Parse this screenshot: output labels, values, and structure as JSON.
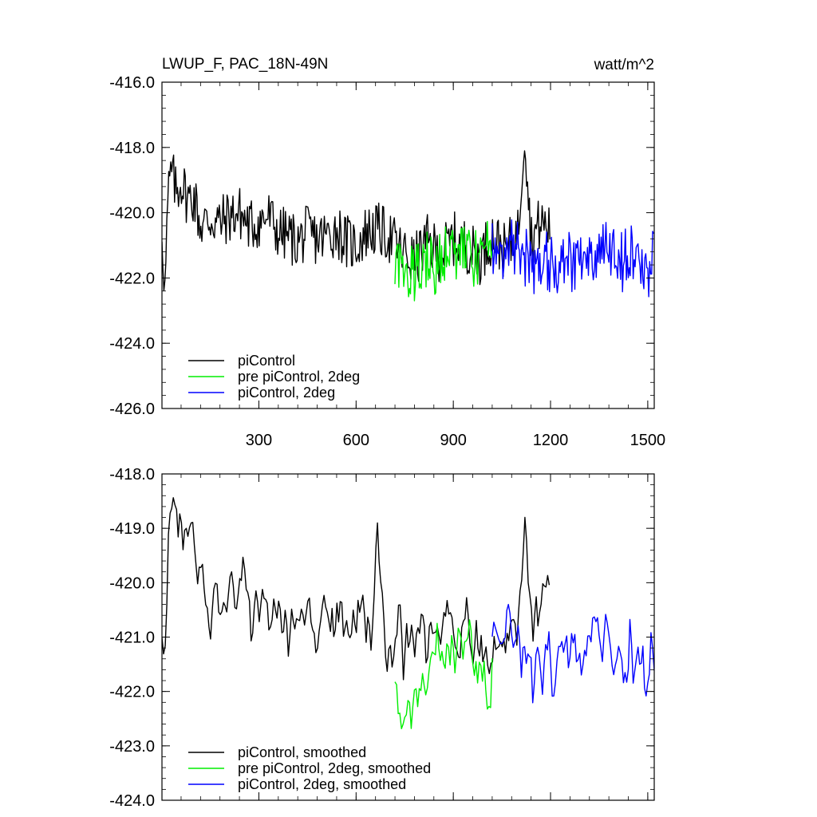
{
  "chart_data": [
    {
      "type": "line",
      "title": "LWUP_F, PAC_18N-49N",
      "units": "watt/m^2",
      "xlim": [
        1,
        1520
      ],
      "ylim": [
        -426.0,
        -416.0
      ],
      "xticks": [
        300,
        600,
        900,
        1200,
        1500
      ],
      "xtick_labels": [
        "300",
        "600",
        "900",
        "1200",
        "1500"
      ],
      "yticks": [
        -426.0,
        -424.0,
        -422.0,
        -420.0,
        -418.0,
        -416.0
      ],
      "ytick_labels": [
        "-426.0",
        "-424.0",
        "-422.0",
        "-420.0",
        "-418.0",
        "-416.0"
      ],
      "legend_position": "bottom-left",
      "series": [
        {
          "name": "piControl",
          "color": "#000000",
          "x_range": [
            1,
            1200
          ],
          "points": [
            [
              1,
              -420.5
            ],
            [
              10,
              -422.4
            ],
            [
              20,
              -419.5
            ],
            [
              30,
              -418.7
            ],
            [
              45,
              -419.4
            ],
            [
              60,
              -419.0
            ],
            [
              80,
              -419.6
            ],
            [
              100,
              -419.5
            ],
            [
              120,
              -420.4
            ],
            [
              150,
              -420.2
            ],
            [
              180,
              -420.3
            ],
            [
              210,
              -420.1
            ],
            [
              240,
              -420.0
            ],
            [
              270,
              -420.4
            ],
            [
              300,
              -420.3
            ],
            [
              330,
              -420.1
            ],
            [
              360,
              -420.6
            ],
            [
              390,
              -420.7
            ],
            [
              420,
              -420.9
            ],
            [
              450,
              -420.6
            ],
            [
              480,
              -420.8
            ],
            [
              510,
              -420.7
            ],
            [
              540,
              -420.5
            ],
            [
              570,
              -420.9
            ],
            [
              600,
              -421.0
            ],
            [
              630,
              -420.6
            ],
            [
              660,
              -420.5
            ],
            [
              700,
              -420.7
            ],
            [
              740,
              -421.2
            ],
            [
              780,
              -421.5
            ],
            [
              820,
              -420.9
            ],
            [
              860,
              -421.3
            ],
            [
              900,
              -420.8
            ],
            [
              940,
              -421.0
            ],
            [
              980,
              -421.4
            ],
            [
              1020,
              -420.7
            ],
            [
              1060,
              -421.2
            ],
            [
              1100,
              -420.6
            ],
            [
              1120,
              -417.4
            ],
            [
              1140,
              -420.8
            ],
            [
              1170,
              -420.3
            ],
            [
              1200,
              -420.5
            ]
          ],
          "noise_amplitude": 0.85
        },
        {
          "name": "pre piControl, 2deg",
          "color": "#00ee00",
          "x_range": [
            720,
            1020
          ],
          "points": [
            [
              720,
              -421.5
            ],
            [
              750,
              -421.6
            ],
            [
              780,
              -422.0
            ],
            [
              810,
              -421.3
            ],
            [
              840,
              -421.7
            ],
            [
              870,
              -421.2
            ],
            [
              900,
              -421.3
            ],
            [
              930,
              -421.1
            ],
            [
              960,
              -421.5
            ],
            [
              990,
              -421.3
            ],
            [
              1020,
              -421.0
            ]
          ],
          "noise_amplitude": 0.9
        },
        {
          "name": "piControl, 2deg",
          "color": "#0000ff",
          "x_range": [
            1020,
            1520
          ],
          "points": [
            [
              1020,
              -421.2
            ],
            [
              1060,
              -421.1
            ],
            [
              1100,
              -421.0
            ],
            [
              1140,
              -421.6
            ],
            [
              1180,
              -421.4
            ],
            [
              1220,
              -421.6
            ],
            [
              1260,
              -421.5
            ],
            [
              1300,
              -421.3
            ],
            [
              1340,
              -421.4
            ],
            [
              1380,
              -421.2
            ],
            [
              1420,
              -421.5
            ],
            [
              1460,
              -421.3
            ],
            [
              1500,
              -421.7
            ],
            [
              1520,
              -421.3
            ]
          ],
          "noise_amplitude": 0.95
        }
      ]
    },
    {
      "type": "line",
      "xlim": [
        1,
        1520
      ],
      "ylim": [
        -424.0,
        -418.0
      ],
      "xticks": [
        300,
        600,
        900,
        1200,
        1500
      ],
      "yticks": [
        -424.0,
        -423.0,
        -422.0,
        -421.0,
        -420.0,
        -419.0,
        -418.0
      ],
      "ytick_labels": [
        "-424.0",
        "-423.0",
        "-422.0",
        "-421.0",
        "-420.0",
        "-419.0",
        "-418.0"
      ],
      "legend_position": "bottom-left",
      "series": [
        {
          "name": "piControl, smoothed",
          "color": "#000000",
          "x_range": [
            1,
            1200
          ],
          "points": [
            [
              1,
              -420.8
            ],
            [
              10,
              -421.4
            ],
            [
              25,
              -419.2
            ],
            [
              35,
              -418.5
            ],
            [
              50,
              -419.0
            ],
            [
              70,
              -419.3
            ],
            [
              90,
              -419.0
            ],
            [
              110,
              -419.7
            ],
            [
              130,
              -420.3
            ],
            [
              150,
              -420.5
            ],
            [
              170,
              -420.2
            ],
            [
              200,
              -420.4
            ],
            [
              230,
              -420.1
            ],
            [
              260,
              -420.0
            ],
            [
              290,
              -420.8
            ],
            [
              320,
              -420.3
            ],
            [
              350,
              -420.5
            ],
            [
              380,
              -420.9
            ],
            [
              410,
              -420.6
            ],
            [
              440,
              -420.4
            ],
            [
              470,
              -420.9
            ],
            [
              500,
              -420.7
            ],
            [
              530,
              -420.8
            ],
            [
              560,
              -420.5
            ],
            [
              590,
              -421.0
            ],
            [
              620,
              -420.6
            ],
            [
              650,
              -420.9
            ],
            [
              665,
              -418.8
            ],
            [
              690,
              -421.3
            ],
            [
              720,
              -421.0
            ],
            [
              760,
              -421.2
            ],
            [
              800,
              -420.9
            ],
            [
              840,
              -421.1
            ],
            [
              880,
              -420.6
            ],
            [
              920,
              -421.0
            ],
            [
              960,
              -420.8
            ],
            [
              1000,
              -421.5
            ],
            [
              1040,
              -421.2
            ],
            [
              1080,
              -420.9
            ],
            [
              1110,
              -420.5
            ],
            [
              1120,
              -418.7
            ],
            [
              1140,
              -420.7
            ],
            [
              1170,
              -420.2
            ],
            [
              1200,
              -420.0
            ]
          ],
          "noise_amplitude": 0.45
        },
        {
          "name": "pre piControl, 2deg, smoothed",
          "color": "#00ee00",
          "x_range": [
            720,
            1020
          ],
          "points": [
            [
              720,
              -422.1
            ],
            [
              745,
              -422.3
            ],
            [
              770,
              -422.5
            ],
            [
              800,
              -421.6
            ],
            [
              830,
              -421.4
            ],
            [
              860,
              -421.2
            ],
            [
              890,
              -421.3
            ],
            [
              920,
              -421.0
            ],
            [
              950,
              -421.3
            ],
            [
              980,
              -421.6
            ],
            [
              1010,
              -422.4
            ],
            [
              1020,
              -421.3
            ]
          ],
          "noise_amplitude": 0.45
        },
        {
          "name": "piControl, 2deg, smoothed",
          "color": "#0000ff",
          "x_range": [
            1020,
            1520
          ],
          "points": [
            [
              1020,
              -421.2
            ],
            [
              1060,
              -421.1
            ],
            [
              1100,
              -421.3
            ],
            [
              1140,
              -421.5
            ],
            [
              1180,
              -421.4
            ],
            [
              1220,
              -421.6
            ],
            [
              1260,
              -421.3
            ],
            [
              1300,
              -421.1
            ],
            [
              1340,
              -420.5
            ],
            [
              1380,
              -421.4
            ],
            [
              1420,
              -421.5
            ],
            [
              1460,
              -421.3
            ],
            [
              1500,
              -421.7
            ],
            [
              1520,
              -421.3
            ]
          ],
          "noise_amplitude": 0.5
        }
      ]
    }
  ]
}
